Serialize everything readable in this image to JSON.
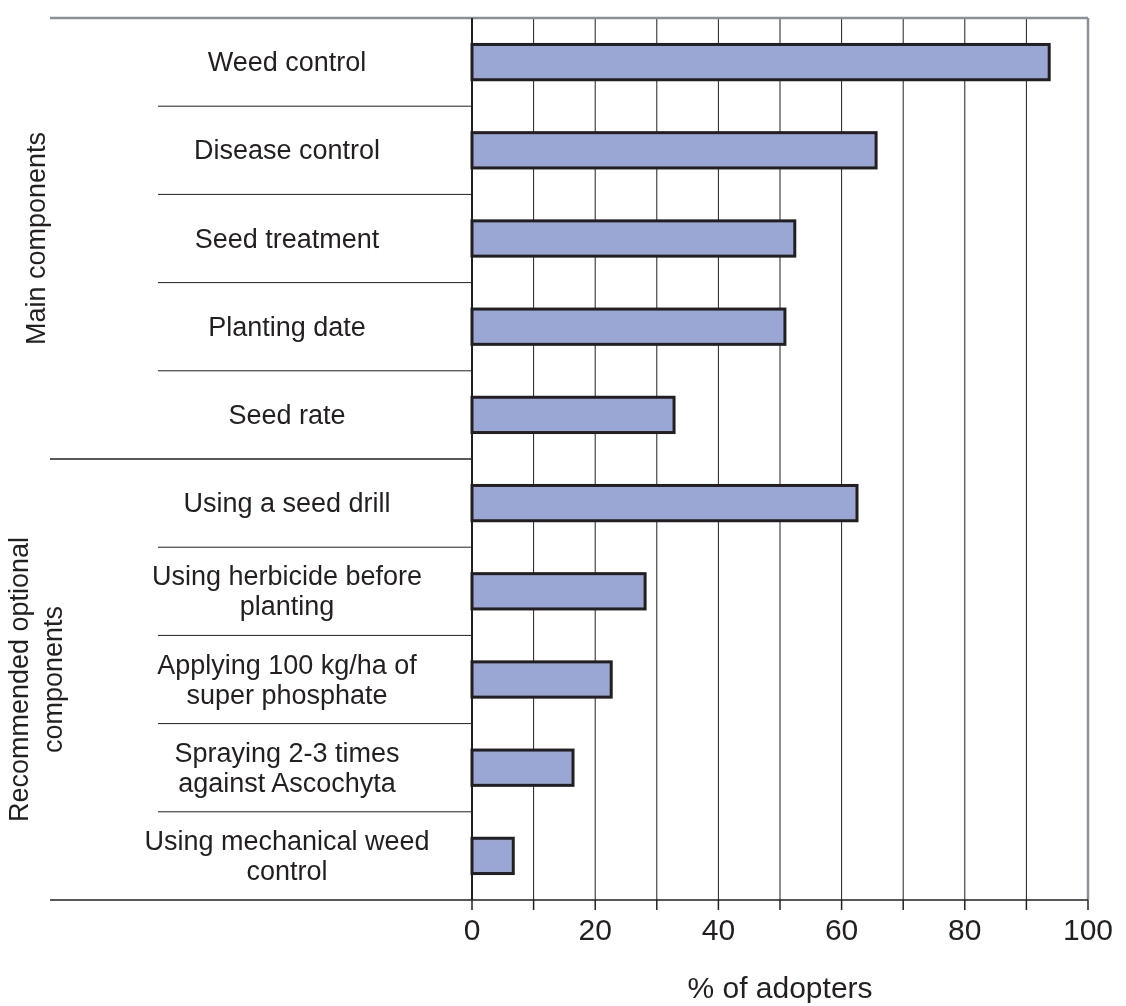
{
  "chart_data": {
    "type": "bar",
    "orientation": "horizontal",
    "xlabel": "% of adopters",
    "categories": [
      "Weed control",
      "Disease control",
      "Seed treatment",
      "Planting date",
      "Seed rate",
      "Using a seed drill",
      "Using herbicide before planting",
      "Applying 100 kg/ha of super phosphate",
      "Spraying 2-3 times against Ascochyta",
      "Using mechanical weed control"
    ],
    "values": [
      93.7,
      65.6,
      52.4,
      50.8,
      32.8,
      62.5,
      28.1,
      22.6,
      16.4,
      6.7
    ],
    "color": "#9aa6d4",
    "xlim": [
      0,
      100
    ],
    "xticks": [
      0,
      {
        "value": 10,
        "label": null
      },
      20,
      {
        "value": 30,
        "label": null
      },
      40,
      {
        "value": 50,
        "label": null
      },
      60,
      {
        "value": 70,
        "label": null
      },
      80,
      {
        "value": 90,
        "label": null
      },
      100
    ],
    "grid": "x",
    "annotations": [
      "Main components",
      "Recommended optional components"
    ]
  }
}
